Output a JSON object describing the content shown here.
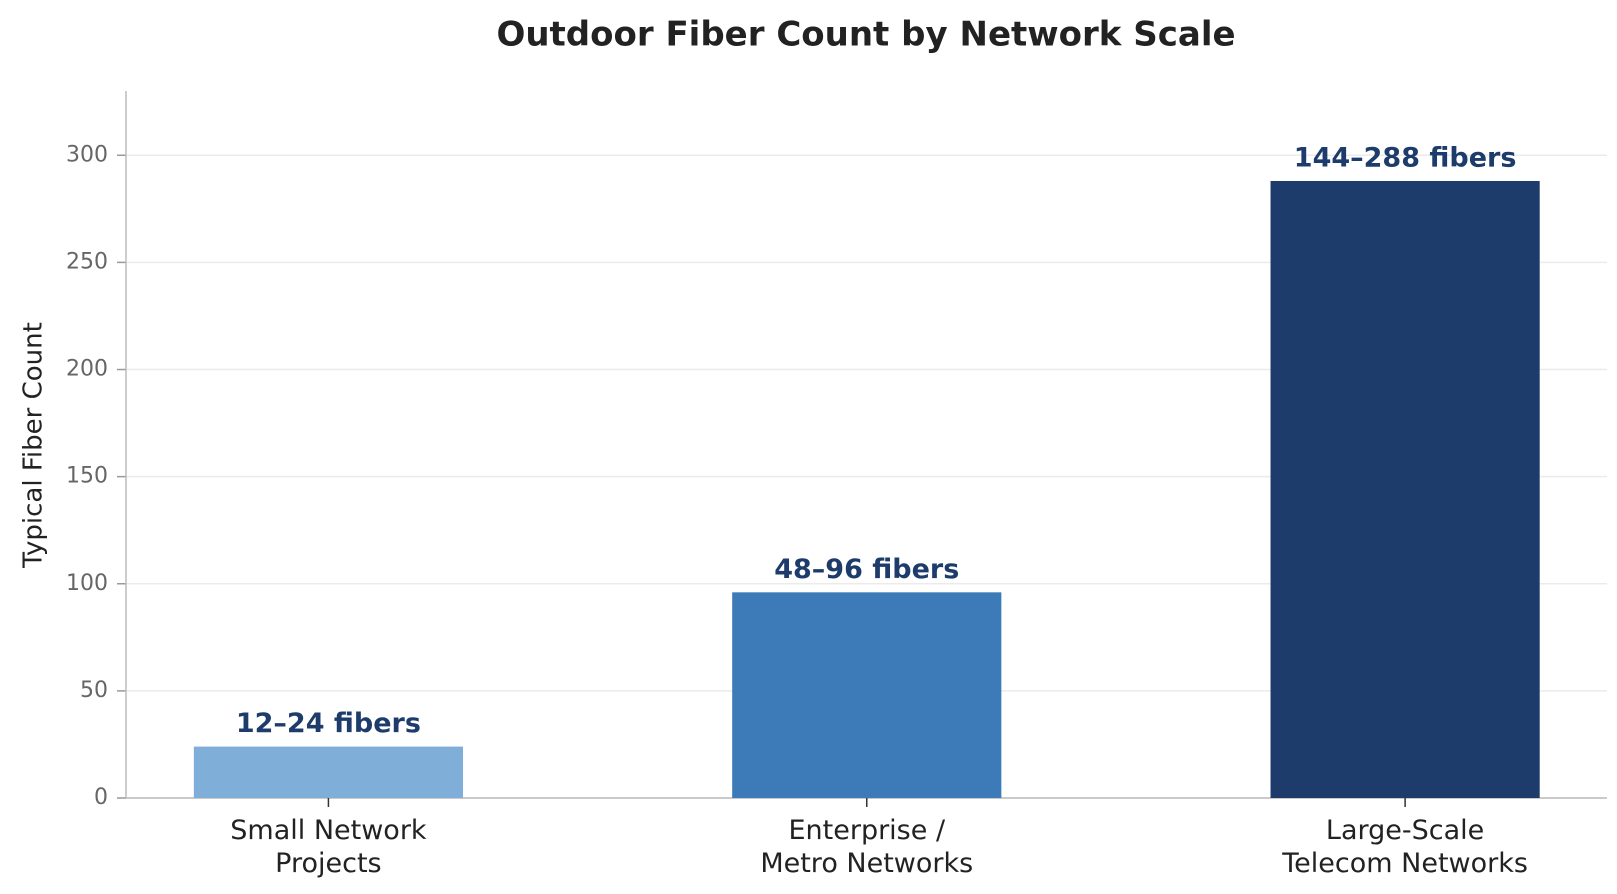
{
  "chart_data": {
    "type": "bar",
    "title": "Outdoor Fiber Count by Network Scale",
    "y_label": "Typical Fiber Count",
    "categories": [
      "Small Network\nProjects",
      "Enterprise /\nMetro Networks",
      "Large-Scale\nTelecom Networks"
    ],
    "values": [
      24,
      96,
      288
    ],
    "value_labels": [
      "12–24 fibers",
      "48–96 fibers",
      "144–288 fibers"
    ],
    "colors": [
      "#7fafd8",
      "#3d7ab8",
      "#1d3c6b"
    ],
    "ylim": [
      0,
      330
    ],
    "yticks": [
      0,
      50,
      100,
      150,
      200,
      250,
      300
    ],
    "grid": true
  }
}
